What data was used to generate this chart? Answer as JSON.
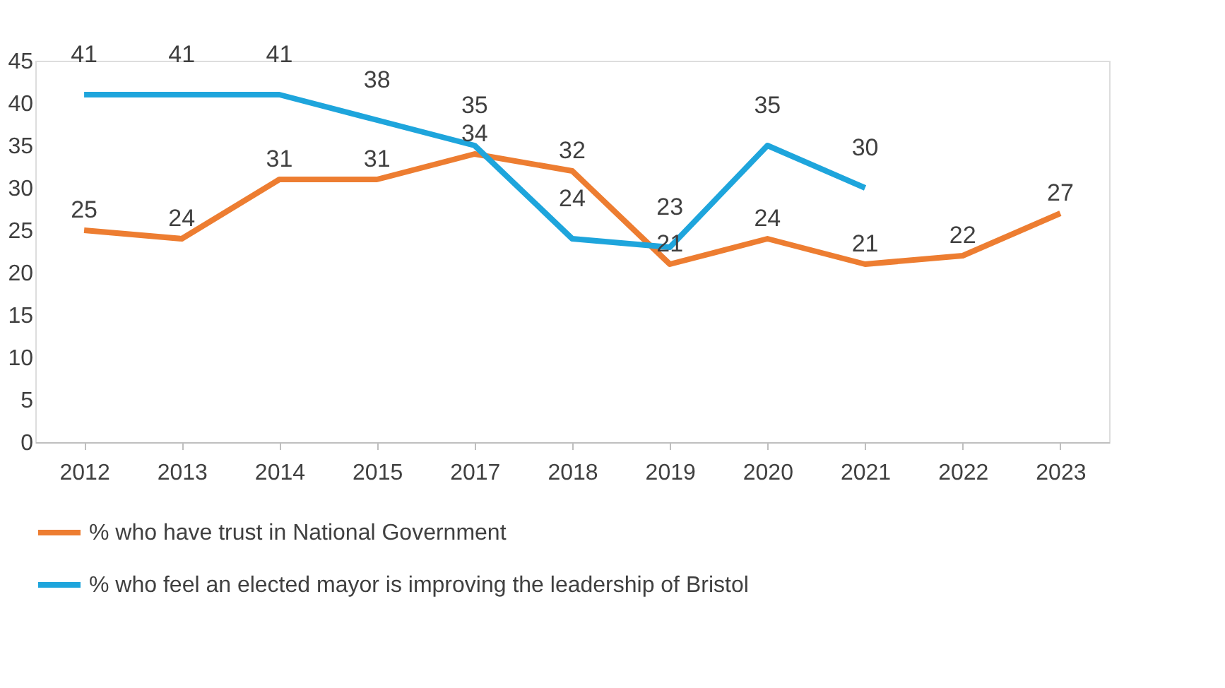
{
  "chart_data": {
    "type": "line",
    "categories": [
      "2012",
      "2013",
      "2014",
      "2015",
      "2017",
      "2018",
      "2019",
      "2020",
      "2021",
      "2022",
      "2023"
    ],
    "series": [
      {
        "name": "% who have trust in National Government",
        "color": "#ed7d31",
        "values": [
          25,
          24,
          31,
          31,
          34,
          32,
          21,
          24,
          21,
          22,
          27
        ]
      },
      {
        "name": "% who feel an elected mayor is improving the leadership of Bristol",
        "color": "#1ea5dc",
        "values": [
          41,
          41,
          41,
          38,
          35,
          24,
          23,
          35,
          30,
          null,
          null
        ]
      }
    ],
    "ylim": [
      0,
      45
    ],
    "yticks": [
      0,
      5,
      10,
      15,
      20,
      25,
      30,
      35,
      40,
      45
    ],
    "grid": false,
    "legend": "bottom",
    "data_labels": true,
    "marker": "none",
    "line_style": "solid"
  }
}
